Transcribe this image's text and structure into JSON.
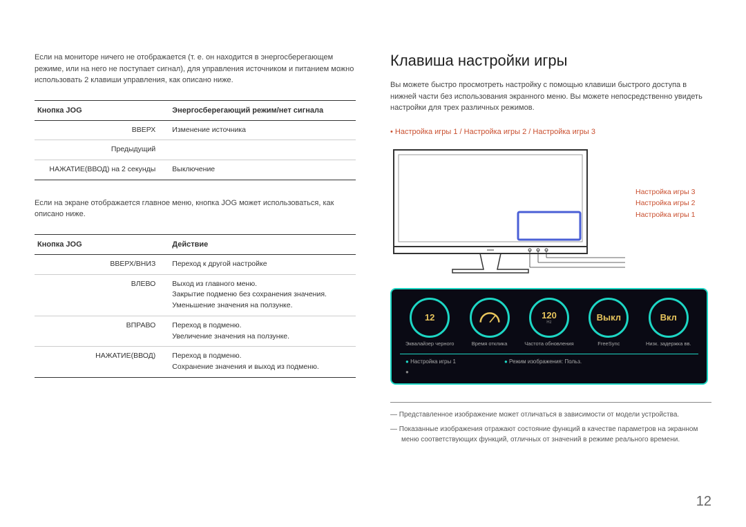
{
  "left": {
    "intro1": "Если на мониторе ничего не отображается (т. е. он находится в энергосберегающем режиме, или на него не поступает сигнал), для управления источником и питанием можно использовать 2 клавиши управления, как описано ниже.",
    "table1": {
      "head1": "Кнопка JOG",
      "head2": "Энергосберегающий режим/нет сигнала",
      "rows": [
        {
          "k": "ВВЕРХ",
          "v": "Изменение источника"
        },
        {
          "k": "Предыдущий",
          "v": ""
        },
        {
          "k": "НАЖАТИЕ(ВВОД) на 2 секунды",
          "v": "Выключение"
        }
      ]
    },
    "intro2": "Если на экране отображается главное меню, кнопка JOG может использоваться, как описано ниже.",
    "table2": {
      "head1": "Кнопка JOG",
      "head2": "Действие",
      "rows": [
        {
          "k": "ВВЕРХ/ВНИЗ",
          "v": "Переход к другой настройке"
        },
        {
          "k": "ВЛЕВО",
          "v": "Выход из главного меню.\nЗакрытие подменю без сохранения значения.\nУменьшение значения на ползунке."
        },
        {
          "k": "ВПРАВО",
          "v": "Переход в подменю.\nУвеличение значения на ползунке."
        },
        {
          "k": "НАЖАТИЕ(ВВОД)",
          "v": "Переход в подменю.\nСохранение значения и выход из подменю."
        }
      ]
    }
  },
  "right": {
    "heading": "Клавиша настройки игры",
    "intro": "Вы можете быстро просмотреть настройку с помощью клавиши быстрого доступа в нижней части без использования экранного меню. Вы можете непосредственно увидеть настройки для трех различных режимов.",
    "bullet": "Настройка игры 1 / Настройка игры 2 / Настройка игры 3",
    "callouts": [
      "Настройка игры 3",
      "Настройка игры 2",
      "Настройка игры 1"
    ],
    "gauges": [
      {
        "val": "12",
        "sub": "",
        "label": "Эквалайзер черного"
      },
      {
        "val": "",
        "sub": "",
        "label": "Время отклика",
        "needle": true
      },
      {
        "val": "120",
        "sub": "Hz",
        "label": "Частота обновления"
      },
      {
        "val": "Выкл",
        "sub": "",
        "label": "FreeSync"
      },
      {
        "val": "Вкл",
        "sub": "",
        "label": "Низк. задержка вв."
      }
    ],
    "status_left": "Настройка игры 1",
    "status_right": "Режим изображения: Польз.",
    "footnote1": "Представленное изображение может отличаться в зависимости от модели устройства.",
    "footnote2": "Показанные изображения отражают состояние функций в качестве параметров на экранном меню соответствующих функций, отличных от значений в режиме реального времени."
  },
  "page": "12",
  "colors": {
    "accent_red": "#c94f2f",
    "teal": "#1dd6c4",
    "gold": "#e7c45c",
    "blue_box": "#4a5fd6"
  }
}
